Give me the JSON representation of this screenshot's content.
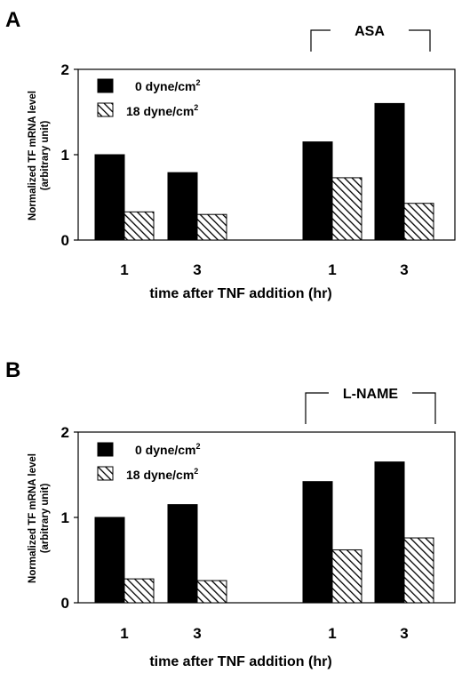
{
  "chart_data": [
    {
      "type": "bar",
      "panel_label": "A",
      "categories": [
        "1",
        "3",
        "1",
        "3"
      ],
      "series": [
        {
          "name": "0 dyne/cm",
          "name_superscript": "2",
          "fill": "solid-black",
          "values": [
            1.0,
            0.79,
            1.15,
            1.6
          ]
        },
        {
          "name": "18 dyne/cm",
          "name_superscript": "2",
          "fill": "diagonal-hatch",
          "values": [
            0.33,
            0.3,
            0.73,
            0.43
          ]
        }
      ],
      "bracket_label": "ASA",
      "bracket_over_categories": [
        2,
        3
      ],
      "ylabel_line1": "Normalized TF mRNA level",
      "ylabel_line2": "(arbitrary unit)",
      "xlabel": "time after TNF addition (hr)",
      "ylim": [
        0,
        2
      ],
      "yticks": [
        "0",
        "1",
        "2"
      ],
      "legend_position": "top-left",
      "grid": false
    },
    {
      "type": "bar",
      "panel_label": "B",
      "categories": [
        "1",
        "3",
        "1",
        "3"
      ],
      "series": [
        {
          "name": "0 dyne/cm",
          "name_superscript": "2",
          "fill": "solid-black",
          "values": [
            1.0,
            1.15,
            1.42,
            1.65
          ]
        },
        {
          "name": "18 dyne/cm",
          "name_superscript": "2",
          "fill": "diagonal-hatch",
          "values": [
            0.28,
            0.26,
            0.62,
            0.76
          ]
        }
      ],
      "bracket_label": "L-NAME",
      "bracket_over_categories": [
        2,
        3
      ],
      "ylabel_line1": "Normalized TF mRNA level",
      "ylabel_line2": "(arbitrary unit)",
      "xlabel": "time after TNF addition (hr)",
      "ylim": [
        0,
        2
      ],
      "yticks": [
        "0",
        "1",
        "2"
      ],
      "legend_position": "top-left",
      "grid": false
    }
  ]
}
